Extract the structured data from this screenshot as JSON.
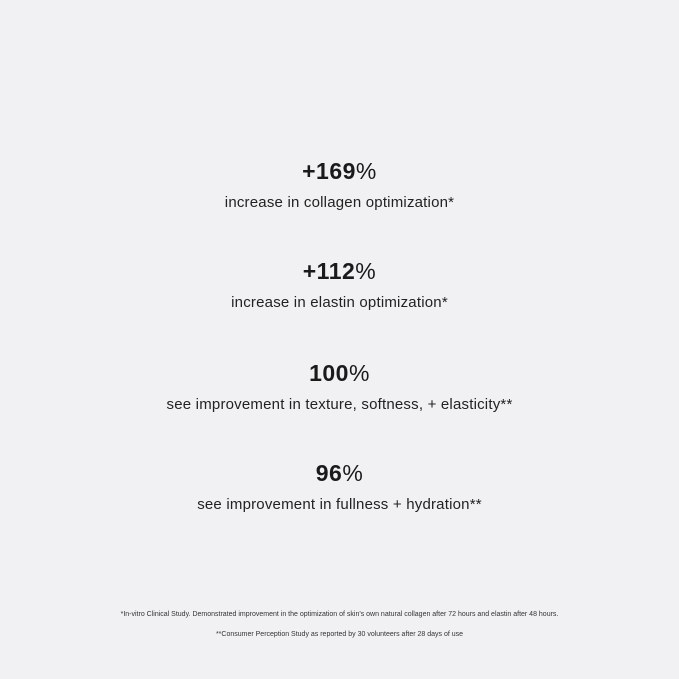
{
  "stats": [
    {
      "value": "+169",
      "unit": "%",
      "label": "increase in collagen optimization*"
    },
    {
      "value": "+112",
      "unit": "%",
      "label": "increase in elastin optimization*"
    },
    {
      "value": "100",
      "unit": "%",
      "label": "see improvement in texture, softness, + elasticity**"
    },
    {
      "value": "96",
      "unit": "%",
      "label": "see improvement in fullness + hydration**"
    }
  ],
  "footnotes": [
    "*In-vitro Clinical Study. Demonstrated improvement in the optimization of skin's own natural collagen after 72 hours and elastin after 48 hours.",
    "**Consumer Perception Study as reported by 30 volunteers after 28 days of use"
  ]
}
